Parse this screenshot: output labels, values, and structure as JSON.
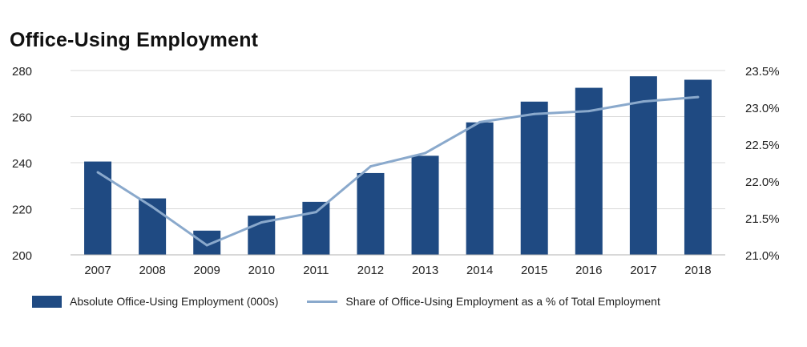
{
  "chart_data": {
    "type": "bar",
    "title": "Office-Using Employment",
    "categories": [
      "2007",
      "2008",
      "2009",
      "2010",
      "2011",
      "2012",
      "2013",
      "2014",
      "2015",
      "2016",
      "2017",
      "2018"
    ],
    "series": [
      {
        "name": "Absolute Office-Using Employment (000s)",
        "type": "bar",
        "axis": "left",
        "values": [
          240.5,
          224.5,
          210.5,
          217,
          223,
          235.5,
          243,
          257.5,
          266.5,
          272.5,
          277.5,
          276
        ]
      },
      {
        "name": "Share of Office-Using Employment as a % of Total Employment",
        "type": "line",
        "axis": "right",
        "values": [
          22.12,
          21.65,
          21.13,
          21.44,
          21.58,
          22.2,
          22.38,
          22.8,
          22.91,
          22.95,
          23.08,
          23.14
        ]
      }
    ],
    "y_left": {
      "ylim": [
        200,
        280
      ],
      "ticks": [
        "200",
        "220",
        "240",
        "260",
        "280"
      ]
    },
    "y_right": {
      "ylim": [
        21.0,
        23.5
      ],
      "ticks": [
        "21.0%",
        "21.5%",
        "22.0%",
        "22.5%",
        "23.0%",
        "23.5%"
      ]
    },
    "grid": true,
    "legend": "bottom"
  },
  "colors": {
    "bar": "#1f4a82",
    "line": "#8aa9cc",
    "grid": "#d9d9d9",
    "axis": "#b0b0b0"
  }
}
